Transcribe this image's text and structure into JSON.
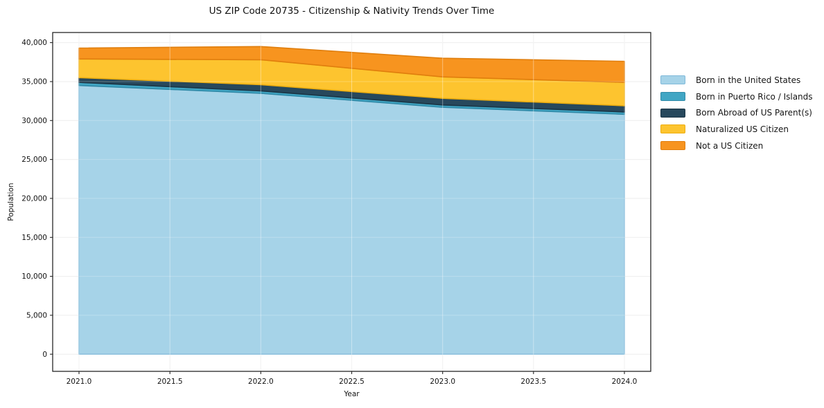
{
  "chart_data": {
    "type": "area",
    "stacked": true,
    "title": "US ZIP Code 20735 - Citizenship & Nativity Trends Over Time",
    "xlabel": "Year",
    "ylabel": "Population",
    "x": [
      2021,
      2022,
      2023,
      2024
    ],
    "series": [
      {
        "name": "Born in the United States",
        "color": "#a6d3e8",
        "edge": "#7fb9d9",
        "values": [
          34500,
          33500,
          31700,
          30800
        ]
      },
      {
        "name": "Born in Puerto Rico / Islands",
        "color": "#41a6c4",
        "edge": "#2f8aa8",
        "values": [
          400,
          300,
          300,
          300
        ]
      },
      {
        "name": "Born Abroad of US Parent(s)",
        "color": "#27485c",
        "edge": "#1c3545",
        "values": [
          600,
          800,
          850,
          800
        ]
      },
      {
        "name": "Naturalized US Citizen",
        "color": "#fdc42f",
        "edge": "#edae10",
        "values": [
          2400,
          3200,
          2750,
          3000
        ]
      },
      {
        "name": "Not a US Citizen",
        "color": "#f7941f",
        "edge": "#e07e0d",
        "values": [
          1400,
          1700,
          2400,
          2700
        ]
      }
    ],
    "xlim": [
      2020.855,
      2024.145
    ],
    "ylim": [
      -2200,
      41300
    ],
    "xticks": [
      2021.0,
      2021.5,
      2022.0,
      2022.5,
      2023.0,
      2023.5,
      2024.0
    ],
    "yticks": [
      0,
      5000,
      10000,
      15000,
      20000,
      25000,
      30000,
      35000,
      40000
    ],
    "grid": true,
    "grid_color": "#e9e9e9",
    "spine_color": "#262626",
    "legend_position": "right"
  }
}
